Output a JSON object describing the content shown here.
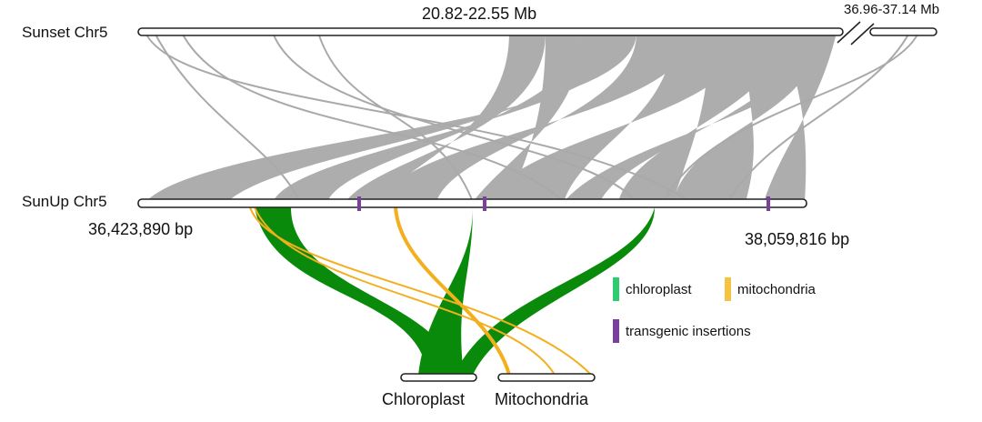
{
  "tracks": {
    "sunset": {
      "name": "Sunset Chr5",
      "range_main": "20.82-22.55 Mb",
      "range_right": "36.96-37.14 Mb"
    },
    "sunup": {
      "name": "SunUp Chr5",
      "start": "36,423,890 bp",
      "end": "38,059,816 bp"
    },
    "organelles": {
      "chloroplast": "Chloroplast",
      "mitochondria": "Mitochondria"
    }
  },
  "legend": {
    "chloroplast": {
      "label": "chloroplast",
      "color": "#2ecc71"
    },
    "mitochondria": {
      "label": "mitochondria",
      "color": "#f5c242"
    },
    "transgenic": {
      "label": "transgenic insertions",
      "color": "#7b3fa0"
    }
  },
  "colors": {
    "synteny": "#a9a9a9",
    "chloroplast_links": "#0a8a0a",
    "mitochondria_links": "#f2b01e",
    "insertion": "#7b3fa0"
  }
}
